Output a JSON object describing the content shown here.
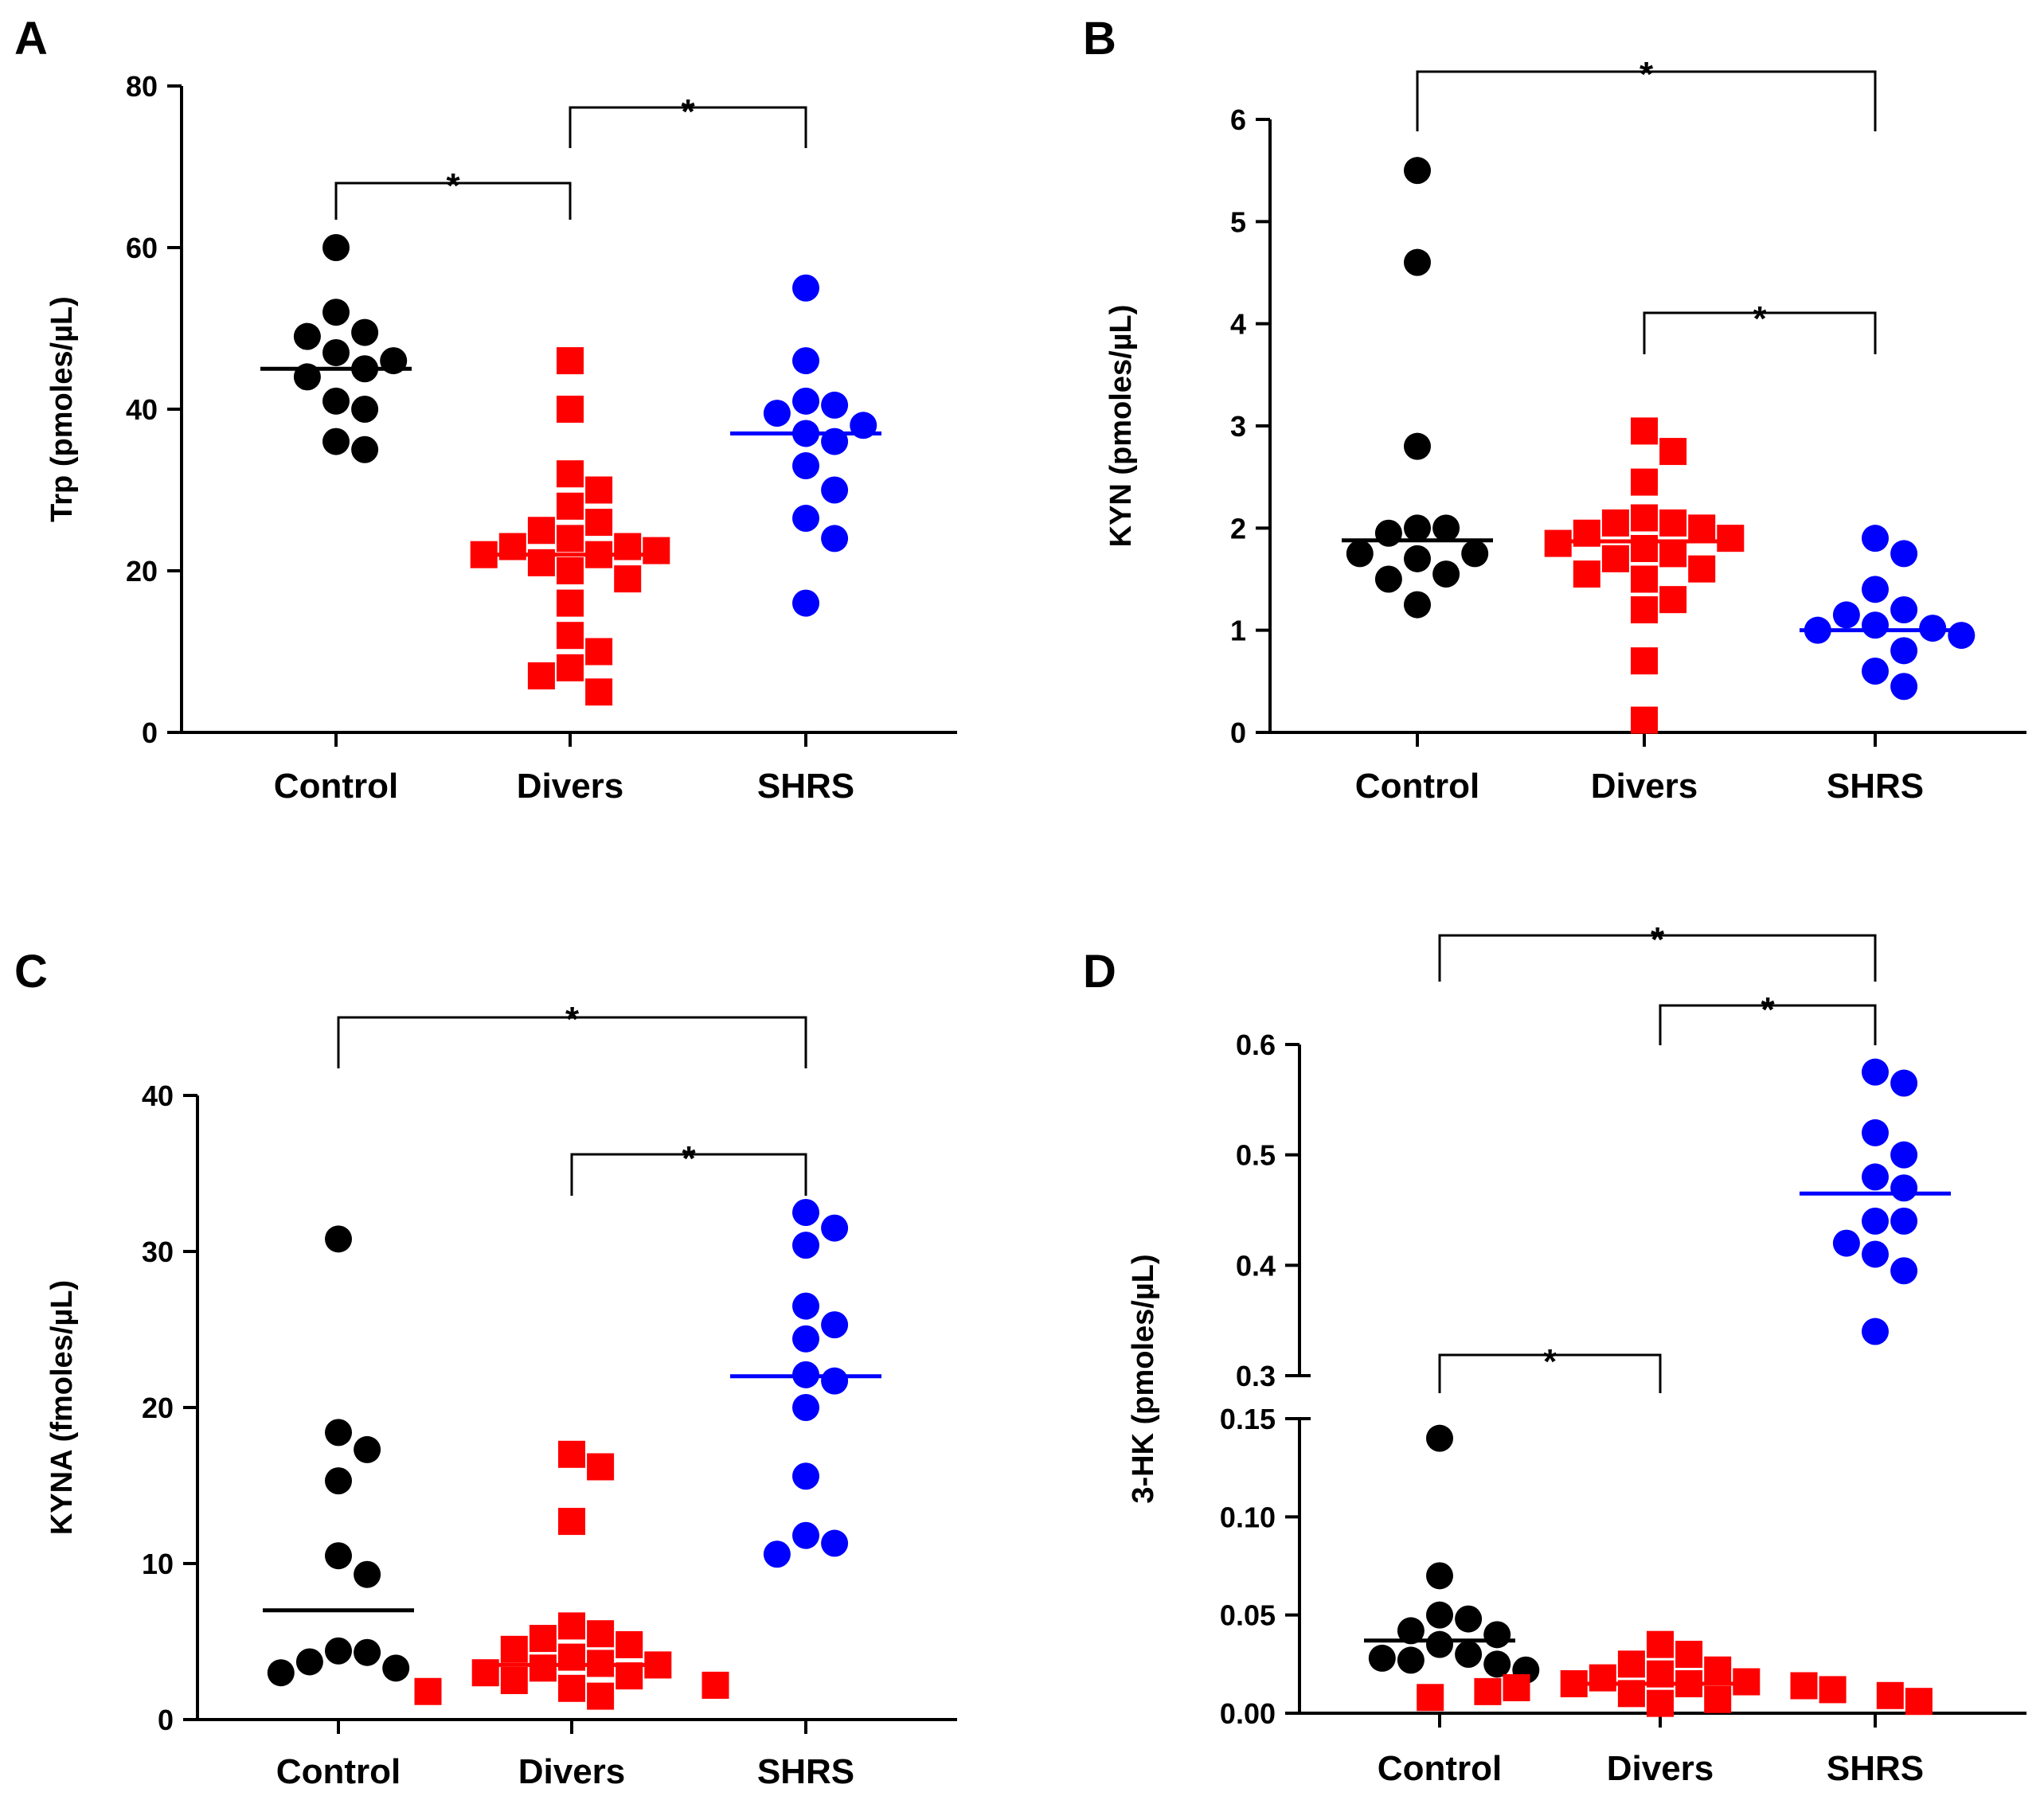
{
  "colors": {
    "control": "#000000",
    "divers": "#ff0000",
    "shrs": "#0000ff",
    "axis": "#000000"
  },
  "chart_data": [
    {
      "panel": "A",
      "type": "scatter",
      "ylabel": "Trp (pmoles/µL)",
      "categories": [
        "Control",
        "Divers",
        "SHRS"
      ],
      "ylim": [
        0,
        80
      ],
      "yticks": [
        0,
        20,
        40,
        60,
        80
      ],
      "series": [
        {
          "name": "Control",
          "marker": "circle",
          "median": 45,
          "values": [
            60,
            52,
            49.5,
            49,
            47,
            46,
            45,
            44,
            41,
            40,
            36,
            35
          ]
        },
        {
          "name": "Divers",
          "marker": "square",
          "median": 22,
          "values": [
            46,
            40,
            32,
            30,
            28,
            26,
            25,
            24,
            23,
            23,
            22.5,
            22,
            22,
            21,
            20,
            19,
            16,
            12,
            10,
            8,
            7,
            5
          ]
        },
        {
          "name": "SHRS",
          "marker": "circle",
          "median": 37,
          "values": [
            55,
            46,
            41,
            40.5,
            39.5,
            38,
            37,
            36,
            33,
            30,
            26.5,
            24,
            16
          ]
        }
      ],
      "significance": [
        {
          "from": "Control",
          "to": "Divers",
          "label": "*"
        },
        {
          "from": "Divers",
          "to": "SHRS",
          "label": "*"
        }
      ]
    },
    {
      "panel": "B",
      "type": "scatter",
      "ylabel": "KYN (pmoles/µL)",
      "categories": [
        "Control",
        "Divers",
        "SHRS"
      ],
      "ylim": [
        0,
        6
      ],
      "yticks": [
        0,
        1,
        2,
        3,
        4,
        5,
        6
      ],
      "series": [
        {
          "name": "Control",
          "marker": "circle",
          "median": 1.88,
          "values": [
            5.5,
            4.6,
            2.8,
            2.0,
            2.0,
            1.95,
            1.75,
            1.75,
            1.7,
            1.55,
            1.5,
            1.25
          ]
        },
        {
          "name": "Divers",
          "marker": "square",
          "median": 1.87,
          "values": [
            2.95,
            2.75,
            2.45,
            2.1,
            2.05,
            2.05,
            2.0,
            1.95,
            1.9,
            1.85,
            1.8,
            1.75,
            1.7,
            1.6,
            1.55,
            1.5,
            1.3,
            1.2,
            0.7,
            0.12
          ]
        },
        {
          "name": "SHRS",
          "marker": "circle",
          "median": 1.0,
          "values": [
            1.9,
            1.75,
            1.4,
            1.2,
            1.15,
            1.05,
            1.02,
            1.0,
            0.95,
            0.8,
            0.6,
            0.45
          ]
        }
      ],
      "significance": [
        {
          "from": "Control",
          "to": "SHRS",
          "label": "*"
        },
        {
          "from": "Divers",
          "to": "SHRS",
          "label": "*"
        }
      ]
    },
    {
      "panel": "C",
      "type": "scatter",
      "ylabel": "KYNA (fmoles/µL)",
      "categories": [
        "Control",
        "Divers",
        "SHRS"
      ],
      "ylim": [
        0,
        40
      ],
      "yticks": [
        0,
        10,
        20,
        30,
        40
      ],
      "series": [
        {
          "name": "Control",
          "marker": "circle",
          "median": 7,
          "values": [
            30.8,
            18.4,
            17.3,
            15.3,
            10.5,
            9.3,
            4.4,
            4.3,
            3.7,
            3.3,
            3.0
          ]
        },
        {
          "name": "Divers",
          "marker": "square",
          "median": 3.5,
          "values": [
            17,
            16.2,
            12.7,
            6,
            5.5,
            5.2,
            4.8,
            4.5,
            4,
            3.6,
            3.5,
            3.3,
            3.0,
            2.8,
            2.5,
            2.2,
            2.0,
            1.8,
            1.5
          ]
        },
        {
          "name": "SHRS",
          "marker": "circle",
          "median": 22,
          "values": [
            32.5,
            31.5,
            30.4,
            26.5,
            25.3,
            24.4,
            22.1,
            21.7,
            20.0,
            15.6,
            11.8,
            11.3,
            10.6
          ]
        }
      ],
      "significance": [
        {
          "from": "Control",
          "to": "SHRS",
          "label": "*"
        },
        {
          "from": "Divers",
          "to": "SHRS",
          "label": "*"
        }
      ]
    },
    {
      "panel": "D",
      "type": "scatter",
      "ylabel": "3-HK (pmoles/µL)",
      "categories": [
        "Control",
        "Divers",
        "SHRS"
      ],
      "ylim_lower": [
        0,
        0.15
      ],
      "ylim_upper": [
        0.3,
        0.6
      ],
      "yticks_lower": [
        "0.00",
        "0.05",
        "0.10",
        "0.15"
      ],
      "yticks_upper": [
        "0.3",
        "0.4",
        "0.5",
        "0.6"
      ],
      "series": [
        {
          "name": "Control",
          "marker": "circle",
          "median": 0.037,
          "values": [
            0.14,
            0.07,
            0.05,
            0.048,
            0.042,
            0.04,
            0.035,
            0.03,
            0.028,
            0.027,
            0.025,
            0.022
          ]
        },
        {
          "name": "Divers",
          "marker": "square",
          "median": 0.015,
          "values": [
            0.035,
            0.03,
            0.025,
            0.022,
            0.02,
            0.018,
            0.016,
            0.015,
            0.015,
            0.014,
            0.013,
            0.012,
            0.011,
            0.01,
            0.009,
            0.008,
            0.007,
            0.006,
            0.005
          ]
        },
        {
          "name": "SHRS",
          "marker": "circle",
          "median": 0.465,
          "values": [
            0.575,
            0.565,
            0.52,
            0.5,
            0.48,
            0.47,
            0.44,
            0.44,
            0.42,
            0.41,
            0.395,
            0.34
          ]
        }
      ],
      "significance": [
        {
          "from": "Control",
          "to": "SHRS",
          "label": "*"
        },
        {
          "from": "Divers",
          "to": "SHRS",
          "label": "*"
        },
        {
          "from": "Control",
          "to": "Divers",
          "label": "*"
        }
      ]
    }
  ]
}
